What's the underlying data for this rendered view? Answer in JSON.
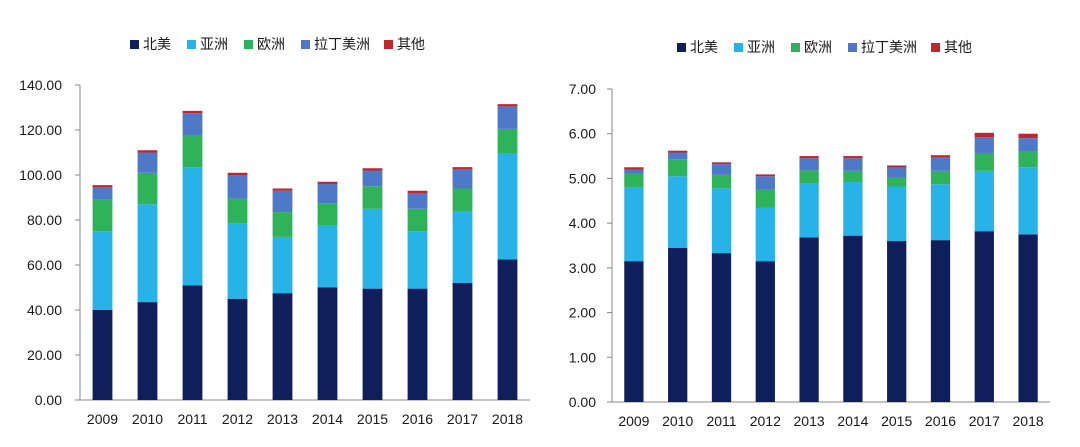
{
  "chart_data": [
    {
      "type": "bar",
      "stacked": true,
      "categories": [
        "2009",
        "2010",
        "2011",
        "2012",
        "2013",
        "2014",
        "2015",
        "2016",
        "2017",
        "2018"
      ],
      "series": [
        {
          "name": "北美",
          "color": "#0e1f5c",
          "values": [
            40,
            43.5,
            51,
            45,
            47.5,
            50,
            49.5,
            49.5,
            52,
            62.5
          ]
        },
        {
          "name": "亚洲",
          "color": "#27b2e8",
          "values": [
            35,
            43.5,
            52.5,
            33.5,
            25,
            27.5,
            35.5,
            25.5,
            32,
            47
          ]
        },
        {
          "name": "欧洲",
          "color": "#2eb35a",
          "values": [
            14,
            14,
            14,
            11,
            11,
            10,
            10,
            10,
            10,
            11
          ]
        },
        {
          "name": "拉丁美洲",
          "color": "#4e79c8",
          "values": [
            5.5,
            9,
            10,
            10.5,
            9.5,
            8.5,
            7,
            7,
            8.5,
            10
          ]
        },
        {
          "name": "其他",
          "color": "#c0272d",
          "values": [
            1,
            1,
            1,
            1,
            1,
            1,
            1,
            1,
            1,
            1
          ]
        }
      ],
      "y_ticks": [
        "0.00",
        "20.00",
        "40.00",
        "60.00",
        "80.00",
        "100.00",
        "120.00",
        "140.00"
      ],
      "ylim": [
        0,
        140
      ],
      "legend_position": "top"
    },
    {
      "type": "bar",
      "stacked": true,
      "categories": [
        "2009",
        "2010",
        "2011",
        "2012",
        "2013",
        "2014",
        "2015",
        "2016",
        "2017",
        "2018"
      ],
      "series": [
        {
          "name": "北美",
          "color": "#0e1f5c",
          "values": [
            3.15,
            3.45,
            3.33,
            3.15,
            3.68,
            3.72,
            3.6,
            3.62,
            3.82,
            3.75
          ]
        },
        {
          "name": "亚洲",
          "color": "#27b2e8",
          "values": [
            1.65,
            1.6,
            1.45,
            1.2,
            1.2,
            1.2,
            1.22,
            1.25,
            1.35,
            1.5
          ]
        },
        {
          "name": "欧洲",
          "color": "#2eb35a",
          "values": [
            0.3,
            0.38,
            0.3,
            0.4,
            0.3,
            0.25,
            0.2,
            0.3,
            0.4,
            0.35
          ]
        },
        {
          "name": "拉丁美洲",
          "color": "#4e79c8",
          "values": [
            0.1,
            0.15,
            0.24,
            0.3,
            0.27,
            0.28,
            0.22,
            0.3,
            0.35,
            0.3
          ]
        },
        {
          "name": "其他",
          "color": "#c0272d",
          "values": [
            0.05,
            0.04,
            0.04,
            0.04,
            0.05,
            0.05,
            0.05,
            0.05,
            0.1,
            0.1
          ]
        }
      ],
      "y_ticks": [
        "0.00",
        "1.00",
        "2.00",
        "3.00",
        "4.00",
        "5.00",
        "6.00",
        "7.00"
      ],
      "ylim": [
        0,
        7
      ],
      "legend_position": "top"
    }
  ]
}
